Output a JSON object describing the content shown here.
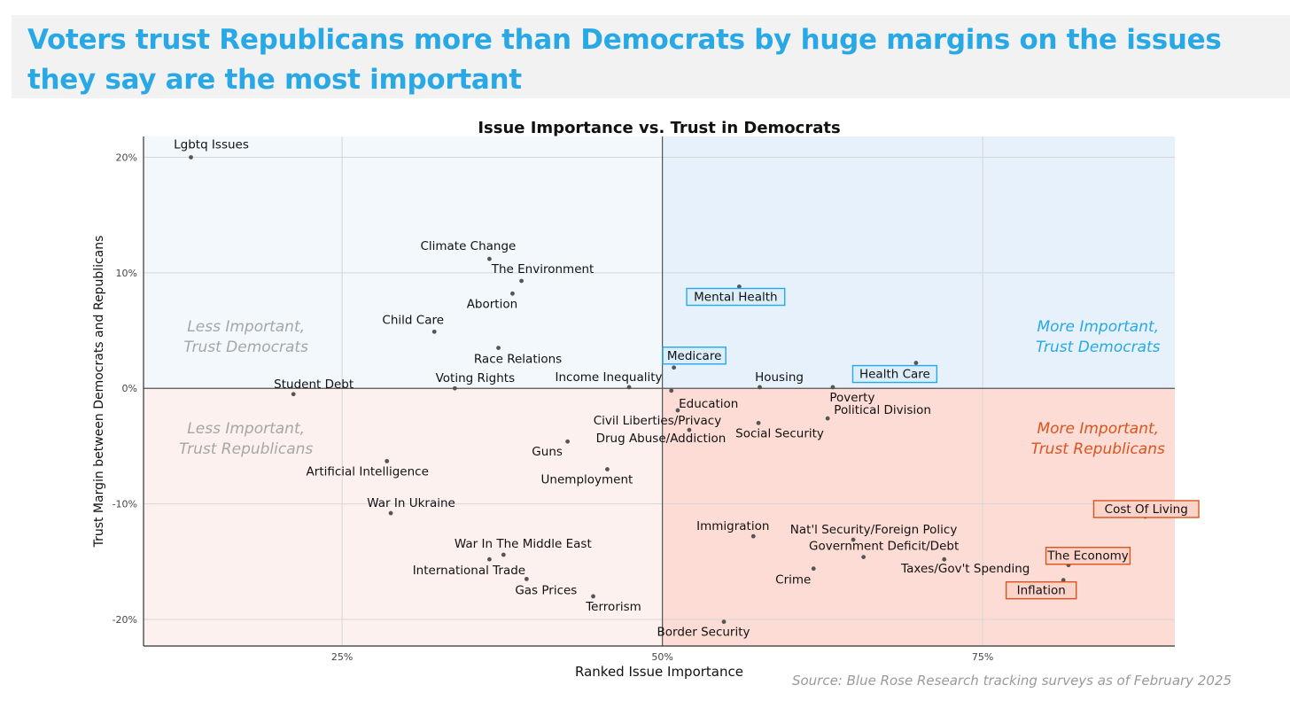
{
  "headline": "Voters trust Republicans more than Democrats by huge margins on the issues they say are the most important",
  "source": "Source: Blue Rose Research tracking surveys as of February 2025",
  "colors": {
    "headline": "#29a8e6",
    "dem_light": "#f3f8fd",
    "dem_important": "#e6f1fb",
    "rep_light": "#fcf1ef",
    "rep_important": "#fcdcd5",
    "dem_text": "#29a8e6",
    "rep_text": "#d9541e",
    "muted_text": "#a6a6a6",
    "highlight_dem": "#29a8e6",
    "highlight_rep": "#d9541e"
  },
  "chart_data": {
    "type": "scatter",
    "title": "Issue Importance vs. Trust in Democrats",
    "xlabel": "Ranked Issue Importance",
    "ylabel": "Trust Margin between Democrats and Republicans",
    "xlim": [
      9.5,
      90
    ],
    "ylim": [
      -22.3,
      21.8
    ],
    "x_ticks": [
      {
        "value": 25,
        "label": "25%"
      },
      {
        "value": 50,
        "label": "50%"
      },
      {
        "value": 75,
        "label": "75%"
      }
    ],
    "y_ticks": [
      {
        "value": 20,
        "label": "20%"
      },
      {
        "value": 10,
        "label": "10%"
      },
      {
        "value": 0,
        "label": "0%"
      },
      {
        "value": -10,
        "label": "-10%"
      },
      {
        "value": -20,
        "label": "-20%"
      }
    ],
    "grid": true,
    "quadrant_labels": [
      {
        "text": "Less Important,\nTrust Democrats",
        "style": "muted",
        "x": 17.5,
        "y": 4.5
      },
      {
        "text": "More Important,\nTrust Democrats",
        "style": "dem",
        "x": 84,
        "y": 4.5
      },
      {
        "text": "Less Important,\nTrust Republicans",
        "style": "muted",
        "x": 17.5,
        "y": -4.3
      },
      {
        "text": "More Important,\nTrust Republicans",
        "style": "rep",
        "x": 84,
        "y": -4.3
      }
    ],
    "points": [
      {
        "name": "Lgbtq Issues",
        "x": 13.2,
        "y": 20.0,
        "label": {
          "dx": 23,
          "dy": -10,
          "anchor": "middle"
        }
      },
      {
        "name": "Climate Change",
        "x": 36.5,
        "y": 11.2,
        "label": {
          "dx": -24,
          "dy": -10,
          "anchor": "middle"
        }
      },
      {
        "name": "The Environment",
        "x": 39.0,
        "y": 9.3,
        "label": {
          "dx": 24,
          "dy": -9,
          "anchor": "middle"
        }
      },
      {
        "name": "Abortion",
        "x": 38.3,
        "y": 8.2,
        "label": {
          "dx": -23,
          "dy": 16,
          "anchor": "middle"
        }
      },
      {
        "name": "Mental Health",
        "x": 56.0,
        "y": 8.8,
        "highlight": "dem",
        "label": {
          "dx": -4,
          "dy": 16,
          "anchor": "middle"
        }
      },
      {
        "name": "Child Care",
        "x": 32.2,
        "y": 4.9,
        "label": {
          "dx": -24,
          "dy": -9,
          "anchor": "middle"
        }
      },
      {
        "name": "Race Relations",
        "x": 37.2,
        "y": 3.5,
        "label": {
          "dx": 22,
          "dy": 17,
          "anchor": "middle"
        }
      },
      {
        "name": "Medicare",
        "x": 50.9,
        "y": 1.8,
        "highlight": "dem",
        "label": {
          "dx": 23,
          "dy": -9,
          "anchor": "middle"
        }
      },
      {
        "name": "Health Care",
        "x": 69.8,
        "y": 2.2,
        "highlight": "dem",
        "label": {
          "dx": -24,
          "dy": 17,
          "anchor": "middle"
        }
      },
      {
        "name": "Student Debt",
        "x": 21.2,
        "y": -0.5,
        "label": {
          "dx": 23,
          "dy": -7,
          "anchor": "middle"
        }
      },
      {
        "name": "Voting Rights",
        "x": 33.8,
        "y": 0.0,
        "label": {
          "dx": 23,
          "dy": -7,
          "anchor": "middle"
        }
      },
      {
        "name": "Income Inequality",
        "x": 47.4,
        "y": 0.1,
        "label": {
          "dx": -23,
          "dy": -7,
          "anchor": "middle"
        }
      },
      {
        "name": "Housing",
        "x": 57.6,
        "y": 0.1,
        "label": {
          "dx": 22,
          "dy": -7,
          "anchor": "middle"
        }
      },
      {
        "name": "Poverty",
        "x": 63.3,
        "y": 0.1,
        "label": {
          "dx": 22,
          "dy": 16,
          "anchor": "middle"
        }
      },
      {
        "name": "Education",
        "x": 50.7,
        "y": -0.2,
        "label": {
          "dx": 42,
          "dy": 19,
          "anchor": "middle"
        }
      },
      {
        "name": "Civil Liberties/Privacy",
        "x": 51.2,
        "y": -1.9,
        "label": {
          "dx": -23,
          "dy": 16,
          "anchor": "middle"
        }
      },
      {
        "name": "Political Division",
        "x": 62.9,
        "y": -2.6,
        "label": {
          "dx": 62,
          "dy": -5,
          "anchor": "middle"
        }
      },
      {
        "name": "Social Security",
        "x": 57.5,
        "y": -3.0,
        "label": {
          "dx": 24,
          "dy": 16,
          "anchor": "middle"
        }
      },
      {
        "name": "Drug Abuse/Addiction",
        "x": 52.1,
        "y": -3.6,
        "label": {
          "dx": -32,
          "dy": 14,
          "anchor": "middle"
        }
      },
      {
        "name": "Guns",
        "x": 42.6,
        "y": -4.6,
        "label": {
          "dx": -23,
          "dy": 16,
          "anchor": "middle"
        }
      },
      {
        "name": "Unemployment",
        "x": 45.7,
        "y": -7.0,
        "label": {
          "dx": -23,
          "dy": 16,
          "anchor": "middle"
        }
      },
      {
        "name": "Artificial Intelligence",
        "x": 28.5,
        "y": -6.3,
        "label": {
          "dx": -22,
          "dy": 16,
          "anchor": "middle"
        }
      },
      {
        "name": "War In Ukraine",
        "x": 28.8,
        "y": -10.8,
        "label": {
          "dx": 23,
          "dy": -7,
          "anchor": "middle"
        }
      },
      {
        "name": "Cost Of Living",
        "x": 87.7,
        "y": -11.1,
        "highlight": "rep",
        "label": {
          "dx": 1,
          "dy": -4,
          "anchor": "middle"
        }
      },
      {
        "name": "Immigration",
        "x": 57.1,
        "y": -12.8,
        "label": {
          "dx": -23,
          "dy": -7,
          "anchor": "middle"
        }
      },
      {
        "name": "Nat'l Security/Foreign Policy",
        "x": 64.9,
        "y": -13.1,
        "label": {
          "dx": 23,
          "dy": -7,
          "anchor": "middle"
        }
      },
      {
        "name": "War In The Middle East",
        "x": 37.6,
        "y": -14.4,
        "label": {
          "dx": 22,
          "dy": -8,
          "anchor": "middle"
        }
      },
      {
        "name": "Government Deficit/Debt",
        "x": 65.7,
        "y": -14.6,
        "label": {
          "dx": 23,
          "dy": -8,
          "anchor": "middle"
        }
      },
      {
        "name": "International Trade",
        "x": 36.5,
        "y": -14.8,
        "label": {
          "dx": -23,
          "dy": 17,
          "anchor": "middle"
        }
      },
      {
        "name": "Taxes/Gov't Spending",
        "x": 72.0,
        "y": -14.8,
        "label": {
          "dx": 24,
          "dy": 15,
          "anchor": "middle"
        }
      },
      {
        "name": "The Economy",
        "x": 81.7,
        "y": -15.3,
        "highlight": "rep",
        "label": {
          "dx": 22,
          "dy": -6,
          "anchor": "middle"
        }
      },
      {
        "name": "Crime",
        "x": 61.8,
        "y": -15.6,
        "label": {
          "dx": -23,
          "dy": 17,
          "anchor": "middle"
        }
      },
      {
        "name": "Gas Prices",
        "x": 39.4,
        "y": -16.5,
        "label": {
          "dx": 22,
          "dy": 17,
          "anchor": "middle"
        }
      },
      {
        "name": "Inflation",
        "x": 81.3,
        "y": -16.6,
        "highlight": "rep",
        "label": {
          "dx": -25,
          "dy": 16,
          "anchor": "middle"
        }
      },
      {
        "name": "Terrorism",
        "x": 44.6,
        "y": -18.0,
        "label": {
          "dx": 23,
          "dy": 16,
          "anchor": "middle"
        }
      },
      {
        "name": "Border Security",
        "x": 54.8,
        "y": -20.2,
        "label": {
          "dx": -23,
          "dy": 16,
          "anchor": "middle"
        }
      }
    ]
  }
}
